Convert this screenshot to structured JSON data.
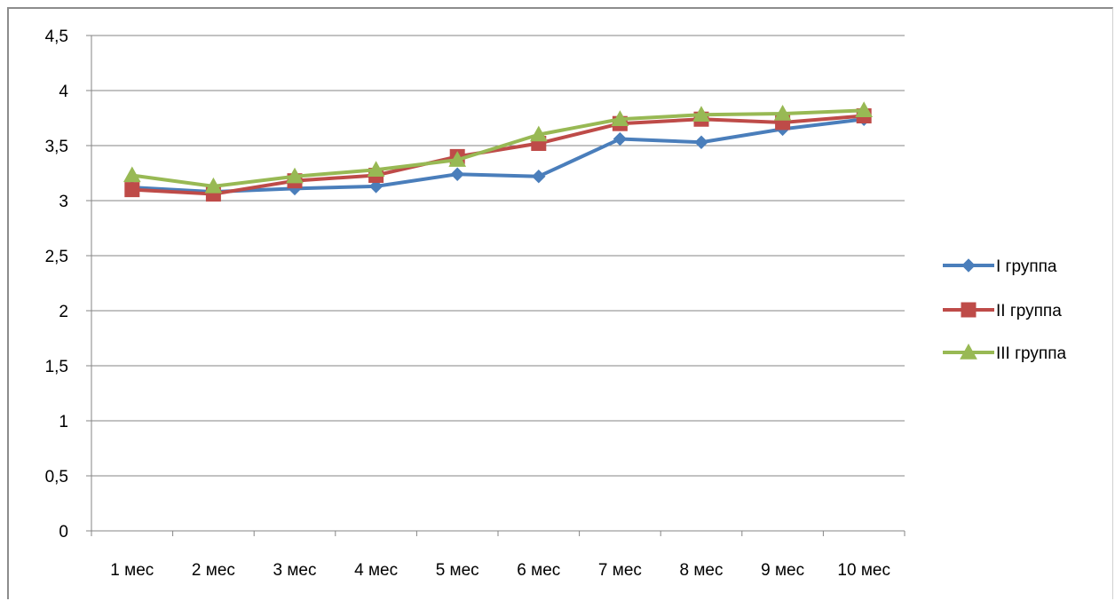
{
  "chart_data": {
    "type": "line",
    "categories": [
      "1 мес",
      "2 мес",
      "3 мес",
      "4 мес",
      "5 мес",
      "6 мес",
      "7 мес",
      "8 мес",
      "9 мес",
      "10 мес"
    ],
    "ylim": [
      0,
      4.5
    ],
    "yticks": [
      "0",
      "0,5",
      "1",
      "1,5",
      "2",
      "2,5",
      "3",
      "3,5",
      "4",
      "4,5"
    ],
    "grid": true,
    "legend_position": "right",
    "series": [
      {
        "name": "I группа",
        "color": "#4a7ebb",
        "marker": "diamond",
        "values": [
          3.12,
          3.08,
          3.11,
          3.13,
          3.24,
          3.22,
          3.56,
          3.53,
          3.65,
          3.74
        ]
      },
      {
        "name": "II группа",
        "color": "#be4b48",
        "marker": "square",
        "values": [
          3.1,
          3.06,
          3.18,
          3.23,
          3.4,
          3.52,
          3.7,
          3.74,
          3.71,
          3.77
        ]
      },
      {
        "name": "III группа",
        "color": "#98b954",
        "marker": "triangle",
        "values": [
          3.23,
          3.13,
          3.22,
          3.28,
          3.37,
          3.6,
          3.74,
          3.78,
          3.79,
          3.82
        ]
      }
    ]
  }
}
